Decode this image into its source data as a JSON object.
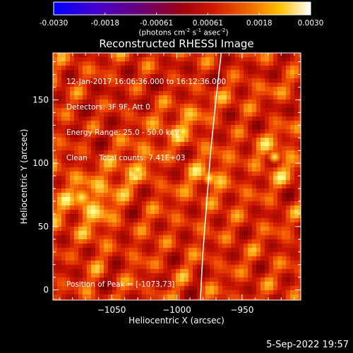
{
  "colorbar": {
    "ticks": [
      "-0.0030",
      "-0.0018",
      "-0.00061",
      "0.00061",
      "0.0018",
      "0.0030"
    ],
    "units_line": "(photons cm⁻² s⁻¹ asec⁻²)",
    "units_base": "(photons cm",
    "units_exp1": "-2",
    "units_mid1": " s",
    "units_exp2": "-1",
    "units_mid2": " asec",
    "units_exp3": "-2",
    "units_end": ")"
  },
  "chart_data": {
    "type": "heatmap",
    "title": "Reconstructed RHESSI Image",
    "xlabel": "Heliocentric X (arcsec)",
    "ylabel": "Heliocentric Y (arcsec)",
    "xlim": [
      -1095,
      -905
    ],
    "ylim": [
      -8,
      187
    ],
    "x_ticks": [
      -1050,
      -1000,
      -950
    ],
    "x_tick_labels": [
      "−1050",
      "−1000",
      "−950"
    ],
    "y_ticks": [
      0,
      50,
      100,
      150
    ],
    "y_tick_labels": [
      "0",
      "50",
      "100",
      "150"
    ],
    "colormap": "hot",
    "peak": {
      "x": -1073,
      "y": 73
    },
    "hotspots": [
      {
        "x": -1073,
        "y": 73
      },
      {
        "x": -975,
        "y": 88
      },
      {
        "x": -995,
        "y": 125
      },
      {
        "x": -1030,
        "y": 95
      },
      {
        "x": -925,
        "y": 105
      }
    ],
    "limb_curve": [
      {
        "x": -966,
        "y": 187
      },
      {
        "x": -970,
        "y": 150
      },
      {
        "x": -974,
        "y": 110
      },
      {
        "x": -977,
        "y": 70
      },
      {
        "x": -980,
        "y": 30
      },
      {
        "x": -982,
        "y": -8
      }
    ],
    "info_lines": [
      "12-Jan-2017 16:06:36.000 to 16:12:36.000",
      "Detectors: 3F 9F, Att 0",
      "Energy Range: 25.0 - 50.0 keV",
      "Clean     Total counts: 7.41E+03"
    ],
    "peak_label": "Position of Peak = [-1073,73]"
  },
  "footer": {
    "date": "5-Sep-2022 19:57"
  }
}
